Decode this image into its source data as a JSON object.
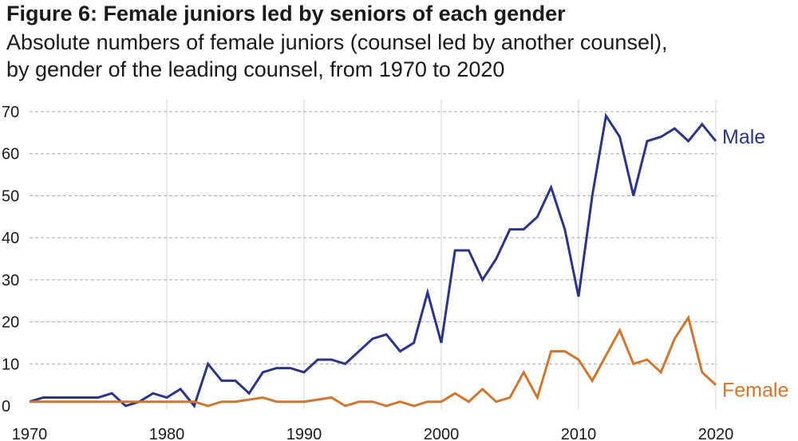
{
  "title": "Figure 6: Female juniors led by seniors of each gender",
  "subtitle_lines": [
    "Absolute numbers of female juniors (counsel led by another counsel),",
    "by gender of the leading counsel, from 1970 to 2020"
  ],
  "chart_data": {
    "type": "line",
    "title": "Figure 6: Female juniors led by seniors of each gender",
    "xlim": [
      1970,
      2020
    ],
    "ylim": [
      0,
      70
    ],
    "x_ticks": [
      1970,
      1980,
      1990,
      2000,
      2010,
      2020
    ],
    "y_ticks": [
      0,
      10,
      20,
      30,
      40,
      50,
      60,
      70
    ],
    "grid": {
      "horizontal": "dashed",
      "vertical": "solid-light"
    },
    "legend": "direct labels at line ends (right)",
    "x": [
      1970,
      1971,
      1972,
      1973,
      1974,
      1975,
      1976,
      1977,
      1978,
      1979,
      1980,
      1981,
      1982,
      1983,
      1984,
      1985,
      1986,
      1987,
      1988,
      1989,
      1990,
      1991,
      1992,
      1993,
      1994,
      1995,
      1996,
      1997,
      1998,
      1999,
      2000,
      2001,
      2002,
      2003,
      2004,
      2005,
      2006,
      2007,
      2008,
      2009,
      2010,
      2011,
      2012,
      2013,
      2014,
      2015,
      2016,
      2017,
      2018,
      2019,
      2020
    ],
    "series": [
      {
        "name": "Male",
        "color": "#2b3588",
        "values": [
          1,
          2,
          2,
          2,
          2,
          2,
          3,
          0,
          1,
          3,
          2,
          4,
          0,
          10,
          6,
          6,
          3,
          8,
          9,
          9,
          8,
          11,
          11,
          10,
          13,
          16,
          17,
          13,
          15,
          27,
          15,
          37,
          37,
          30,
          35,
          42,
          42,
          45,
          52,
          42,
          26,
          50,
          69,
          64,
          50,
          63,
          64,
          66,
          63,
          67,
          63
        ]
      },
      {
        "name": "Female",
        "color": "#d2762e",
        "values": [
          1,
          1,
          1,
          1,
          1,
          1,
          1,
          1,
          1,
          1,
          1,
          1,
          1,
          0,
          1,
          1,
          1.5,
          2,
          1,
          1,
          1,
          1.5,
          2,
          0,
          1,
          1,
          0,
          1,
          0,
          1,
          1,
          3,
          1,
          4,
          1,
          2,
          8,
          2,
          13,
          13,
          11,
          6,
          12,
          18,
          10,
          11,
          8,
          16,
          21,
          8,
          5
        ]
      }
    ]
  }
}
